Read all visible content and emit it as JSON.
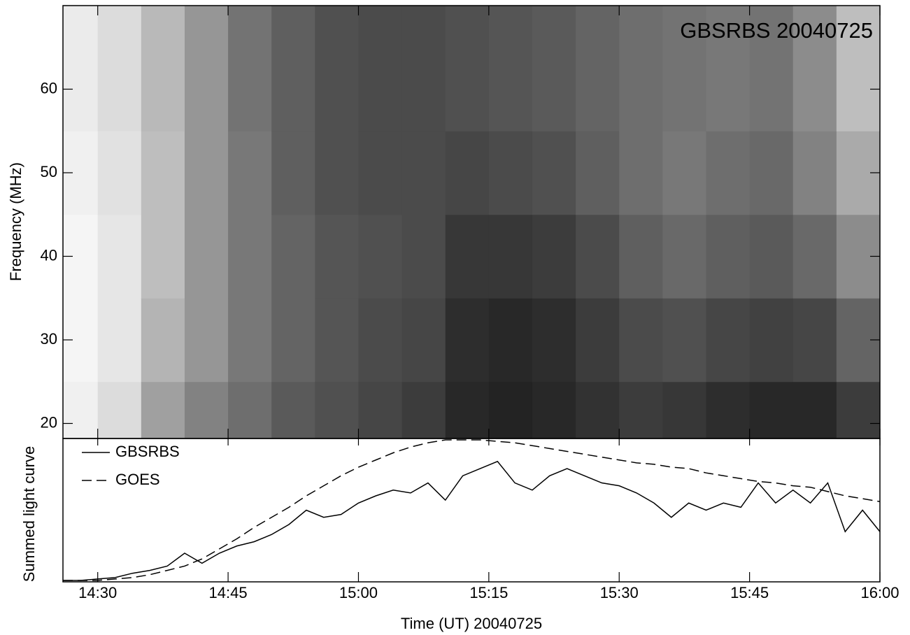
{
  "chart_data": [
    {
      "type": "heatmap",
      "title": "GBSRBS 20040725",
      "ylabel": "Frequency (MHz)",
      "xlim": [
        "14:26",
        "16:00"
      ],
      "ylim": [
        18.2,
        70
      ],
      "yticks": [
        20,
        30,
        40,
        50,
        60
      ],
      "x_edges": [
        "14:26",
        "14:30",
        "14:35",
        "14:40",
        "14:45",
        "14:50",
        "14:55",
        "15:00",
        "15:05",
        "15:10",
        "15:15",
        "15:20",
        "15:25",
        "15:30",
        "15:35",
        "15:40",
        "15:45",
        "15:50",
        "15:55",
        "16:00"
      ],
      "y_edges": [
        18.2,
        25,
        35,
        45,
        55,
        70
      ],
      "values": [
        [
          240,
          245,
          245,
          240,
          235
        ],
        [
          220,
          230,
          230,
          225,
          220
        ],
        [
          160,
          180,
          190,
          190,
          185
        ],
        [
          130,
          150,
          150,
          150,
          150
        ],
        [
          110,
          120,
          120,
          120,
          115
        ],
        [
          90,
          100,
          100,
          95,
          95
        ],
        [
          80,
          85,
          85,
          80,
          80
        ],
        [
          70,
          75,
          80,
          75,
          75
        ],
        [
          60,
          70,
          75,
          75,
          75
        ],
        [
          40,
          45,
          55,
          70,
          80
        ],
        [
          35,
          40,
          55,
          75,
          85
        ],
        [
          40,
          45,
          60,
          80,
          90
        ],
        [
          50,
          60,
          75,
          95,
          100
        ],
        [
          60,
          75,
          95,
          110,
          110
        ],
        [
          55,
          80,
          105,
          120,
          115
        ],
        [
          45,
          70,
          95,
          110,
          120
        ],
        [
          40,
          65,
          90,
          105,
          115
        ],
        [
          40,
          70,
          105,
          130,
          140
        ],
        [
          60,
          100,
          140,
          170,
          190
        ]
      ]
    },
    {
      "type": "line",
      "ylabel": "Summed light curve",
      "xlabel": "Time (UT) 20040725",
      "xlim": [
        "14:26",
        "16:00"
      ],
      "xticks": [
        "14:30",
        "14:45",
        "15:00",
        "15:15",
        "15:30",
        "15:45",
        "16:00"
      ],
      "ylim": [
        0,
        1
      ],
      "legend": "upper left",
      "x": [
        "14:26",
        "14:28",
        "14:30",
        "14:32",
        "14:34",
        "14:36",
        "14:38",
        "14:40",
        "14:42",
        "14:44",
        "14:46",
        "14:48",
        "14:50",
        "14:52",
        "14:54",
        "14:56",
        "14:58",
        "15:00",
        "15:02",
        "15:04",
        "15:06",
        "15:08",
        "15:10",
        "15:12",
        "15:14",
        "15:16",
        "15:18",
        "15:20",
        "15:22",
        "15:24",
        "15:26",
        "15:28",
        "15:30",
        "15:32",
        "15:34",
        "15:36",
        "15:38",
        "15:40",
        "15:42",
        "15:44",
        "15:46",
        "15:48",
        "15:50",
        "15:52",
        "15:54",
        "15:56",
        "15:58",
        "16:00"
      ],
      "series": [
        {
          "name": "GBSRBS",
          "color": "#000000",
          "line_style": "solid",
          "values": [
            0.01,
            0.01,
            0.02,
            0.03,
            0.06,
            0.08,
            0.11,
            0.2,
            0.13,
            0.2,
            0.25,
            0.28,
            0.33,
            0.4,
            0.5,
            0.45,
            0.47,
            0.55,
            0.6,
            0.64,
            0.62,
            0.69,
            0.57,
            0.74,
            0.79,
            0.84,
            0.69,
            0.64,
            0.74,
            0.79,
            0.74,
            0.69,
            0.67,
            0.62,
            0.55,
            0.45,
            0.55,
            0.5,
            0.55,
            0.52,
            0.69,
            0.55,
            0.64,
            0.55,
            0.69,
            0.35,
            0.5,
            0.35
          ]
        },
        {
          "name": "GOES",
          "color": "#000000",
          "line_style": "dashed",
          "values": [
            0.01,
            0.01,
            0.01,
            0.02,
            0.03,
            0.05,
            0.08,
            0.11,
            0.16,
            0.23,
            0.3,
            0.38,
            0.45,
            0.52,
            0.6,
            0.67,
            0.74,
            0.8,
            0.85,
            0.9,
            0.94,
            0.97,
            0.99,
            0.99,
            0.99,
            0.98,
            0.97,
            0.95,
            0.93,
            0.91,
            0.89,
            0.87,
            0.85,
            0.83,
            0.82,
            0.8,
            0.79,
            0.76,
            0.74,
            0.72,
            0.7,
            0.69,
            0.67,
            0.66,
            0.63,
            0.6,
            0.58,
            0.56
          ]
        }
      ]
    }
  ]
}
